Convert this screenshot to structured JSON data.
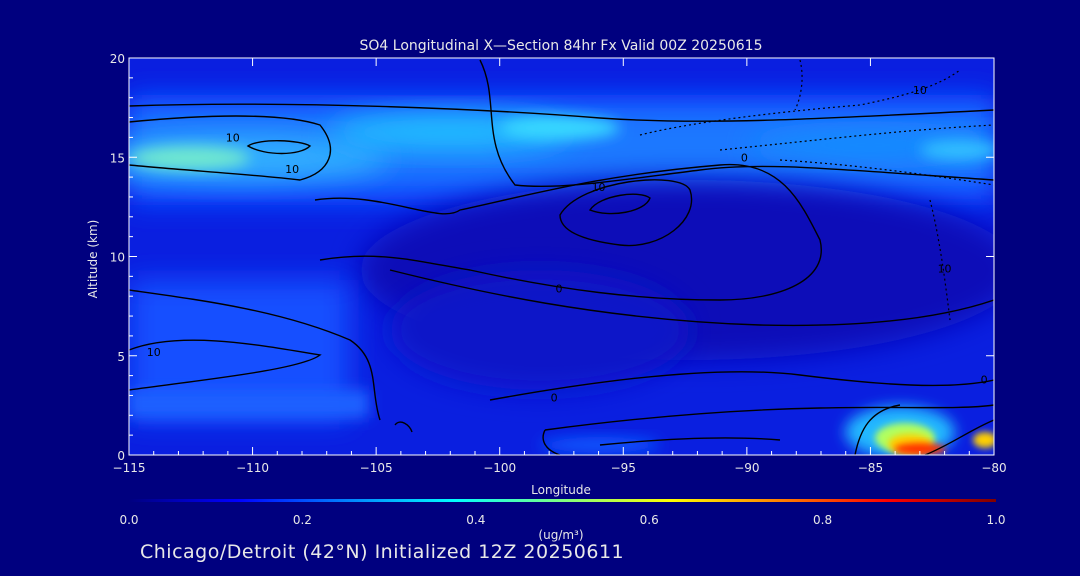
{
  "chart_data": {
    "type": "heatmap",
    "title": "SO4 Longitudinal X—Section 84hr  Fx Valid 00Z 20250615",
    "xlabel": "Longitude",
    "ylabel": "Altitude (km)",
    "xlim": [
      -115,
      -80
    ],
    "ylim": [
      0,
      20
    ],
    "x_ticks": [
      "−115",
      "−110",
      "−105",
      "−100",
      "−95",
      "−90",
      "−85",
      "−80"
    ],
    "x_tick_values": [
      -115,
      -110,
      -105,
      -100,
      -95,
      -90,
      -85,
      -80
    ],
    "y_ticks": [
      "0",
      "5",
      "10",
      "15",
      "20"
    ],
    "y_tick_values": [
      0,
      5,
      10,
      15,
      20
    ],
    "colorbar": {
      "label": "(ug/m³)",
      "range": [
        0.0,
        1.0
      ],
      "ticks": [
        "0.0",
        "0.2",
        "0.4",
        "0.6",
        "0.8",
        "1.0"
      ],
      "tick_values": [
        0.0,
        0.2,
        0.4,
        0.6,
        0.8,
        1.0
      ],
      "colors": [
        "#00007f",
        "#0000ff",
        "#0080ff",
        "#00ffff",
        "#80ff80",
        "#ffff00",
        "#ff8000",
        "#ff0000",
        "#7f0000"
      ]
    },
    "concentration_features": [
      {
        "lon": -110,
        "alt": 15.0,
        "value": 0.45
      },
      {
        "lon": -101,
        "alt": 16.0,
        "value": 0.38
      },
      {
        "lon": -90,
        "alt": 15.6,
        "value": 0.28
      },
      {
        "lon": -82,
        "alt": 15.3,
        "value": 0.34
      },
      {
        "lon": -110,
        "alt": 5.0,
        "value": 0.2
      },
      {
        "lon": -83.5,
        "alt": 0.6,
        "value": 0.9
      }
    ],
    "contour_labels": [
      {
        "text": "10",
        "lon": -110.8,
        "alt": 16.0
      },
      {
        "text": "10",
        "lon": -108.4,
        "alt": 14.4
      },
      {
        "text": "10",
        "lon": -96.0,
        "alt": 13.5
      },
      {
        "text": "0",
        "lon": -90.1,
        "alt": 15.0
      },
      {
        "text": "0",
        "lon": -97.6,
        "alt": 8.4
      },
      {
        "text": "0",
        "lon": -97.8,
        "alt": 2.9
      },
      {
        "text": "10",
        "lon": -114.0,
        "alt": 5.2
      },
      {
        "text": "10",
        "lon": -83.0,
        "alt": 18.4
      },
      {
        "text": "10",
        "lon": -82.0,
        "alt": 9.4
      },
      {
        "text": "0",
        "lon": -80.4,
        "alt": 3.8
      }
    ]
  },
  "footer": "Chicago/Detroit (42°N) Initialized 12Z 20250611"
}
